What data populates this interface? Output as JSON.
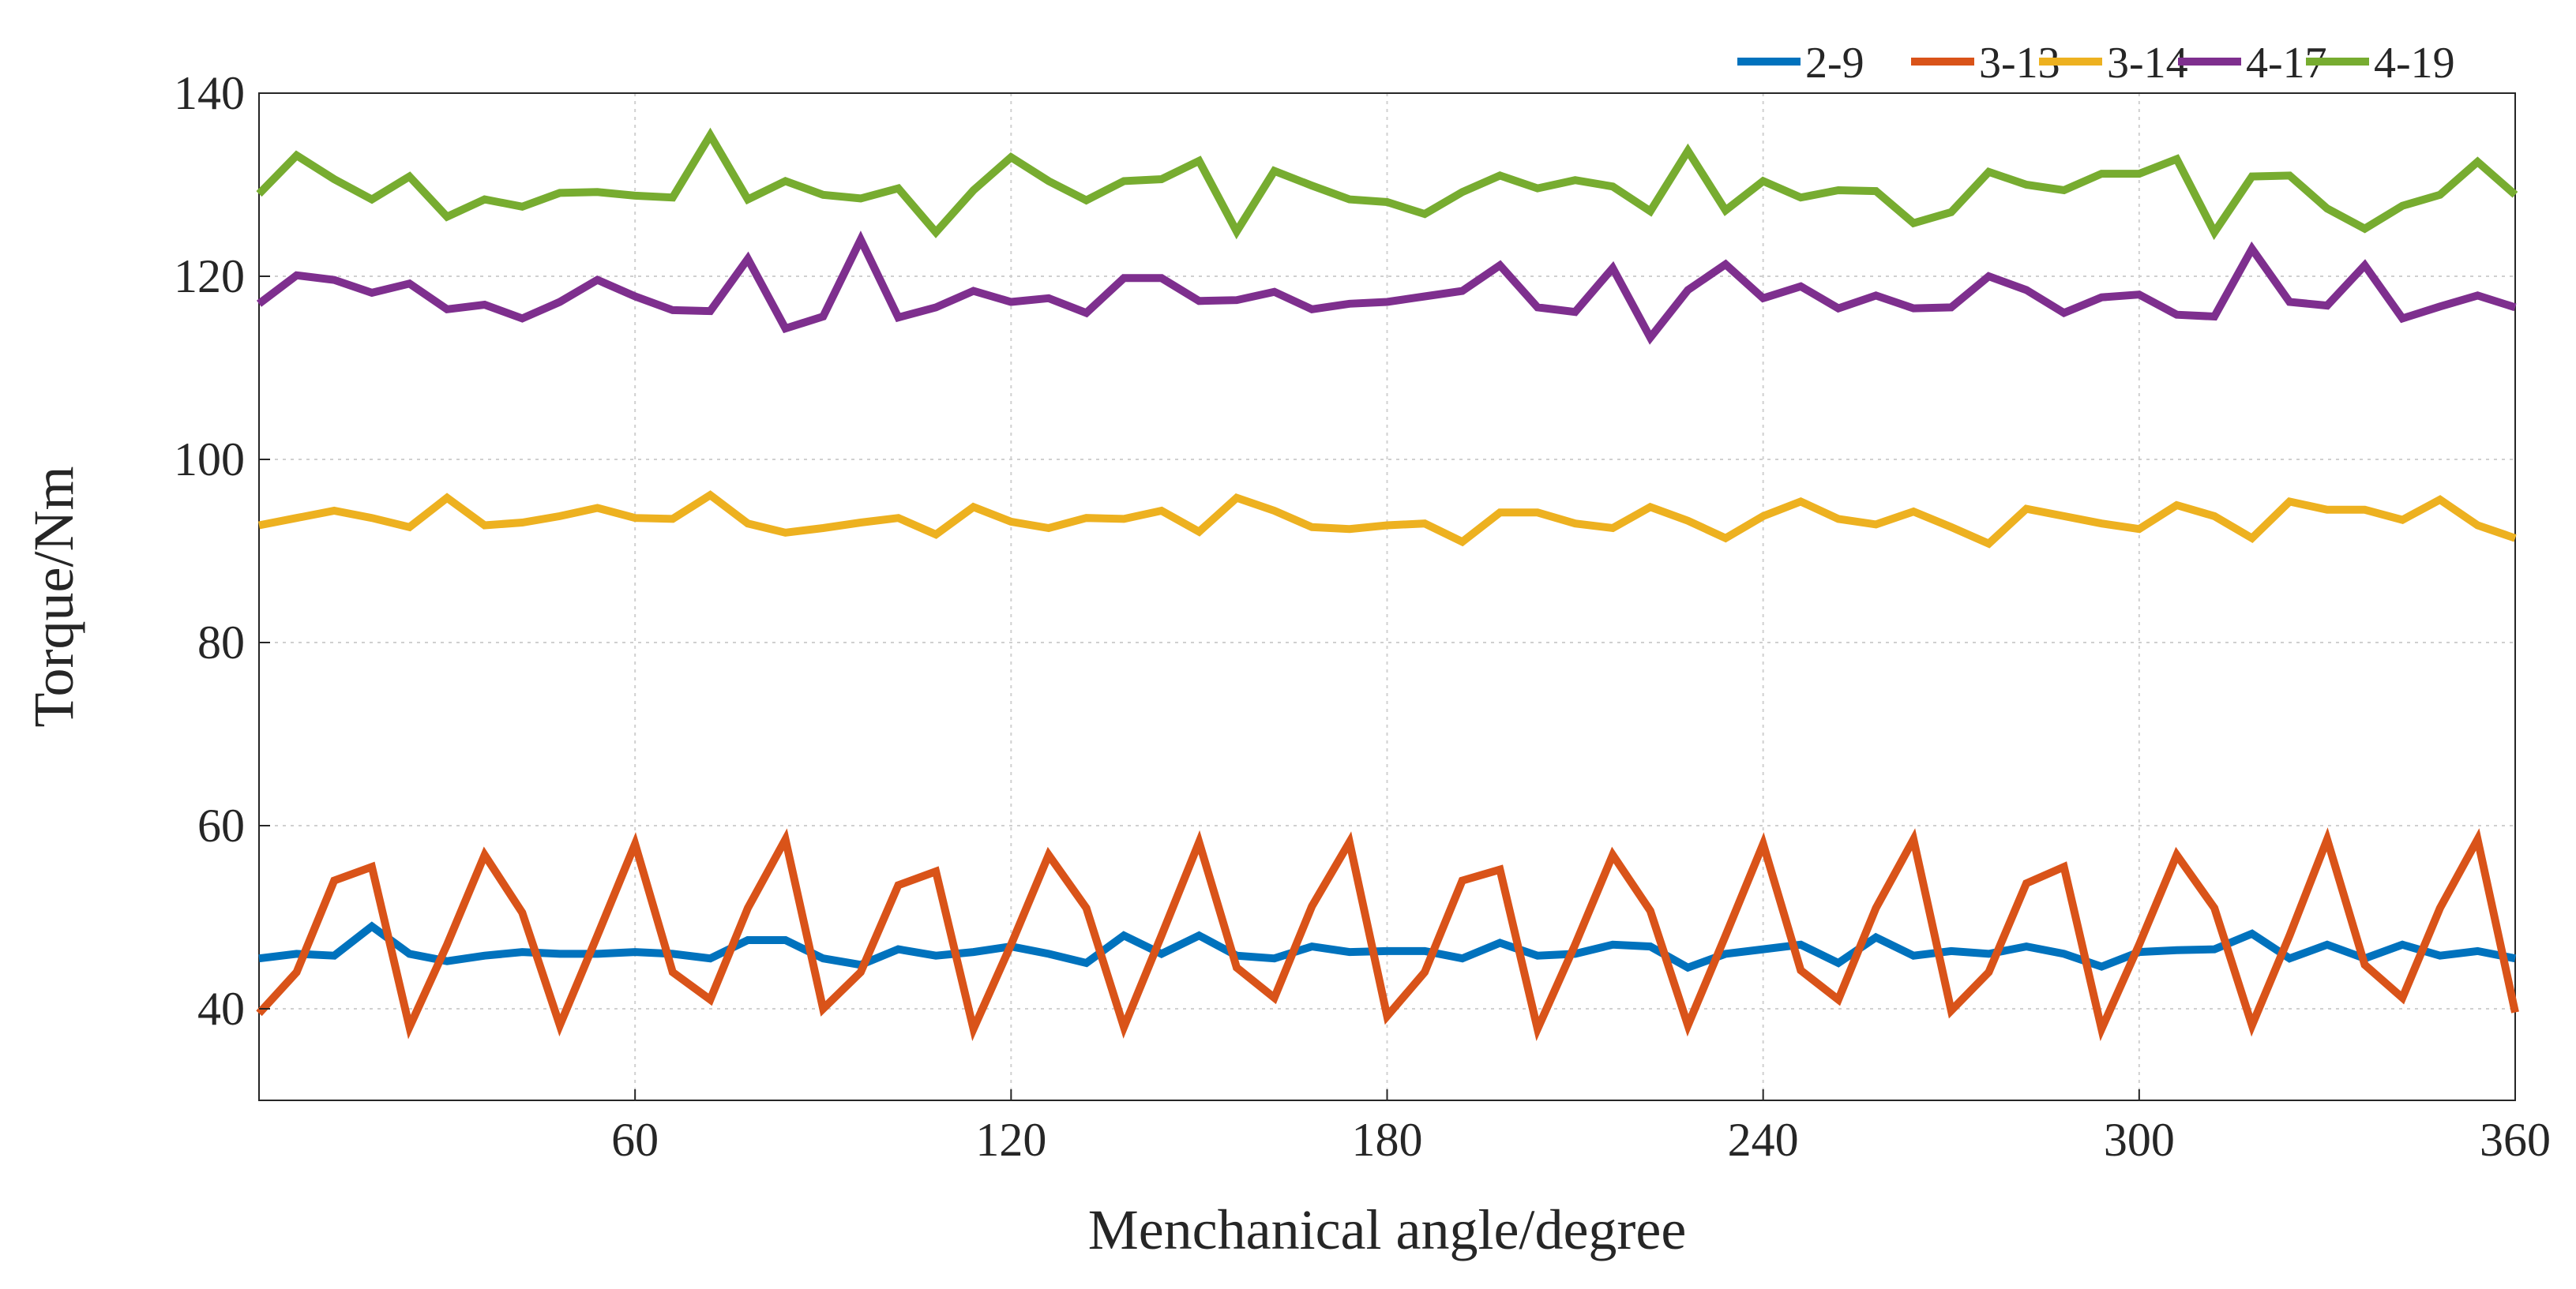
{
  "chart_data": {
    "type": "line",
    "title": "",
    "xlabel": "Menchanical angle/degree",
    "ylabel": "Torque/Nm",
    "xlim": [
      0,
      360
    ],
    "ylim": [
      30,
      140
    ],
    "xticks": [
      60,
      120,
      180,
      240,
      300,
      360
    ],
    "yticks": [
      40,
      60,
      80,
      100,
      120,
      140
    ],
    "xtick_labels": [
      "60",
      "120",
      "180",
      "240",
      "300",
      "360"
    ],
    "ytick_labels": [
      "40",
      "60",
      "80",
      "100",
      "120",
      "140"
    ],
    "grid": true,
    "legend_position": "top-right",
    "x_step": 6,
    "series": [
      {
        "name": "2-9",
        "color": "#0072BD",
        "values": [
          45.5,
          46.0,
          45.8,
          49.0,
          46.0,
          45.2,
          45.8,
          46.2,
          46.0,
          46.0,
          46.2,
          46.0,
          45.5,
          47.5,
          47.5,
          45.5,
          44.8,
          46.5,
          45.8,
          46.2,
          46.8,
          46.0,
          45.0,
          48.0,
          46.0,
          48.0,
          45.8,
          45.5,
          46.8,
          46.2,
          46.3,
          46.3,
          45.5,
          47.2,
          45.8,
          46.0,
          47.0,
          46.8,
          44.5,
          46.0,
          46.5,
          47.0,
          45.0,
          47.8,
          45.8,
          46.3,
          46.0,
          46.8,
          46.0,
          44.6,
          46.2,
          46.4,
          46.5,
          48.2,
          45.5,
          47.0,
          45.5,
          47.0,
          45.8,
          46.3,
          45.5
        ]
      },
      {
        "name": "3-13",
        "color": "#D95319",
        "values": [
          39.5,
          44.0,
          54.0,
          55.5,
          38.0,
          47.0,
          56.8,
          50.5,
          38.2,
          48.0,
          58.0,
          44.0,
          41.0,
          51.0,
          58.5,
          40.0,
          44.0,
          53.5,
          55.0,
          37.8,
          47.0,
          56.8,
          51.0,
          38.0,
          48.0,
          58.2,
          44.5,
          41.2,
          51.2,
          58.2,
          39.2,
          44.0,
          54.0,
          55.2,
          37.8,
          47.0,
          56.8,
          50.7,
          38.2,
          48.0,
          58.0,
          44.2,
          41.0,
          51.0,
          58.5,
          39.8,
          44.0,
          53.7,
          55.5,
          37.8,
          47.0,
          56.8,
          51.0,
          38.2,
          48.0,
          58.5,
          44.8,
          41.2,
          51.0,
          58.5,
          39.6
        ]
      },
      {
        "name": "3-14",
        "color": "#EDB120",
        "values": [
          92.8,
          93.6,
          94.4,
          93.6,
          92.6,
          95.8,
          92.8,
          93.1,
          93.8,
          94.7,
          93.6,
          93.5,
          96.1,
          93.0,
          92.0,
          92.5,
          93.1,
          93.6,
          91.8,
          94.8,
          93.2,
          92.5,
          93.6,
          93.5,
          94.4,
          92.1,
          95.8,
          94.4,
          92.6,
          92.4,
          92.8,
          93.0,
          91.0,
          94.2,
          94.2,
          93.0,
          92.5,
          94.8,
          93.3,
          91.4,
          93.8,
          95.4,
          93.5,
          92.9,
          94.3,
          92.6,
          90.8,
          94.6,
          93.8,
          93.0,
          92.4,
          95.0,
          93.8,
          91.4,
          95.4,
          94.5,
          94.5,
          93.4,
          95.6,
          92.8,
          91.4
        ]
      },
      {
        "name": "4-17",
        "color": "#7E2F8E",
        "values": [
          117.0,
          120.1,
          119.6,
          118.2,
          119.2,
          116.4,
          116.9,
          115.4,
          117.2,
          119.6,
          117.8,
          116.3,
          116.2,
          121.9,
          114.3,
          115.6,
          124.0,
          115.5,
          116.6,
          118.4,
          117.2,
          117.6,
          116.0,
          119.8,
          119.8,
          117.3,
          117.4,
          118.3,
          116.4,
          117.0,
          117.2,
          117.8,
          118.4,
          121.2,
          116.6,
          116.1,
          120.9,
          113.3,
          118.5,
          121.3,
          117.6,
          118.9,
          116.5,
          117.9,
          116.5,
          116.6,
          120.0,
          118.5,
          116.0,
          117.7,
          118.0,
          115.8,
          115.6,
          123.0,
          117.2,
          116.8,
          121.2,
          115.4,
          116.7,
          117.9,
          116.6
        ]
      },
      {
        "name": "4-19",
        "color": "#77AC30",
        "values": [
          129.0,
          133.2,
          130.6,
          128.4,
          130.9,
          126.5,
          128.4,
          127.6,
          129.1,
          129.2,
          128.8,
          128.6,
          135.4,
          128.4,
          130.4,
          128.9,
          128.5,
          129.6,
          124.8,
          129.4,
          133.0,
          130.4,
          128.3,
          130.4,
          130.6,
          132.6,
          124.9,
          131.5,
          129.9,
          128.4,
          128.1,
          126.8,
          129.2,
          131.0,
          129.6,
          130.5,
          129.8,
          127.1,
          133.7,
          127.2,
          130.4,
          128.6,
          129.4,
          129.3,
          125.8,
          127.0,
          131.4,
          130.0,
          129.4,
          131.2,
          131.2,
          132.8,
          124.8,
          130.9,
          131.0,
          127.4,
          125.2,
          127.7,
          128.9,
          132.5,
          128.9
        ]
      }
    ]
  }
}
